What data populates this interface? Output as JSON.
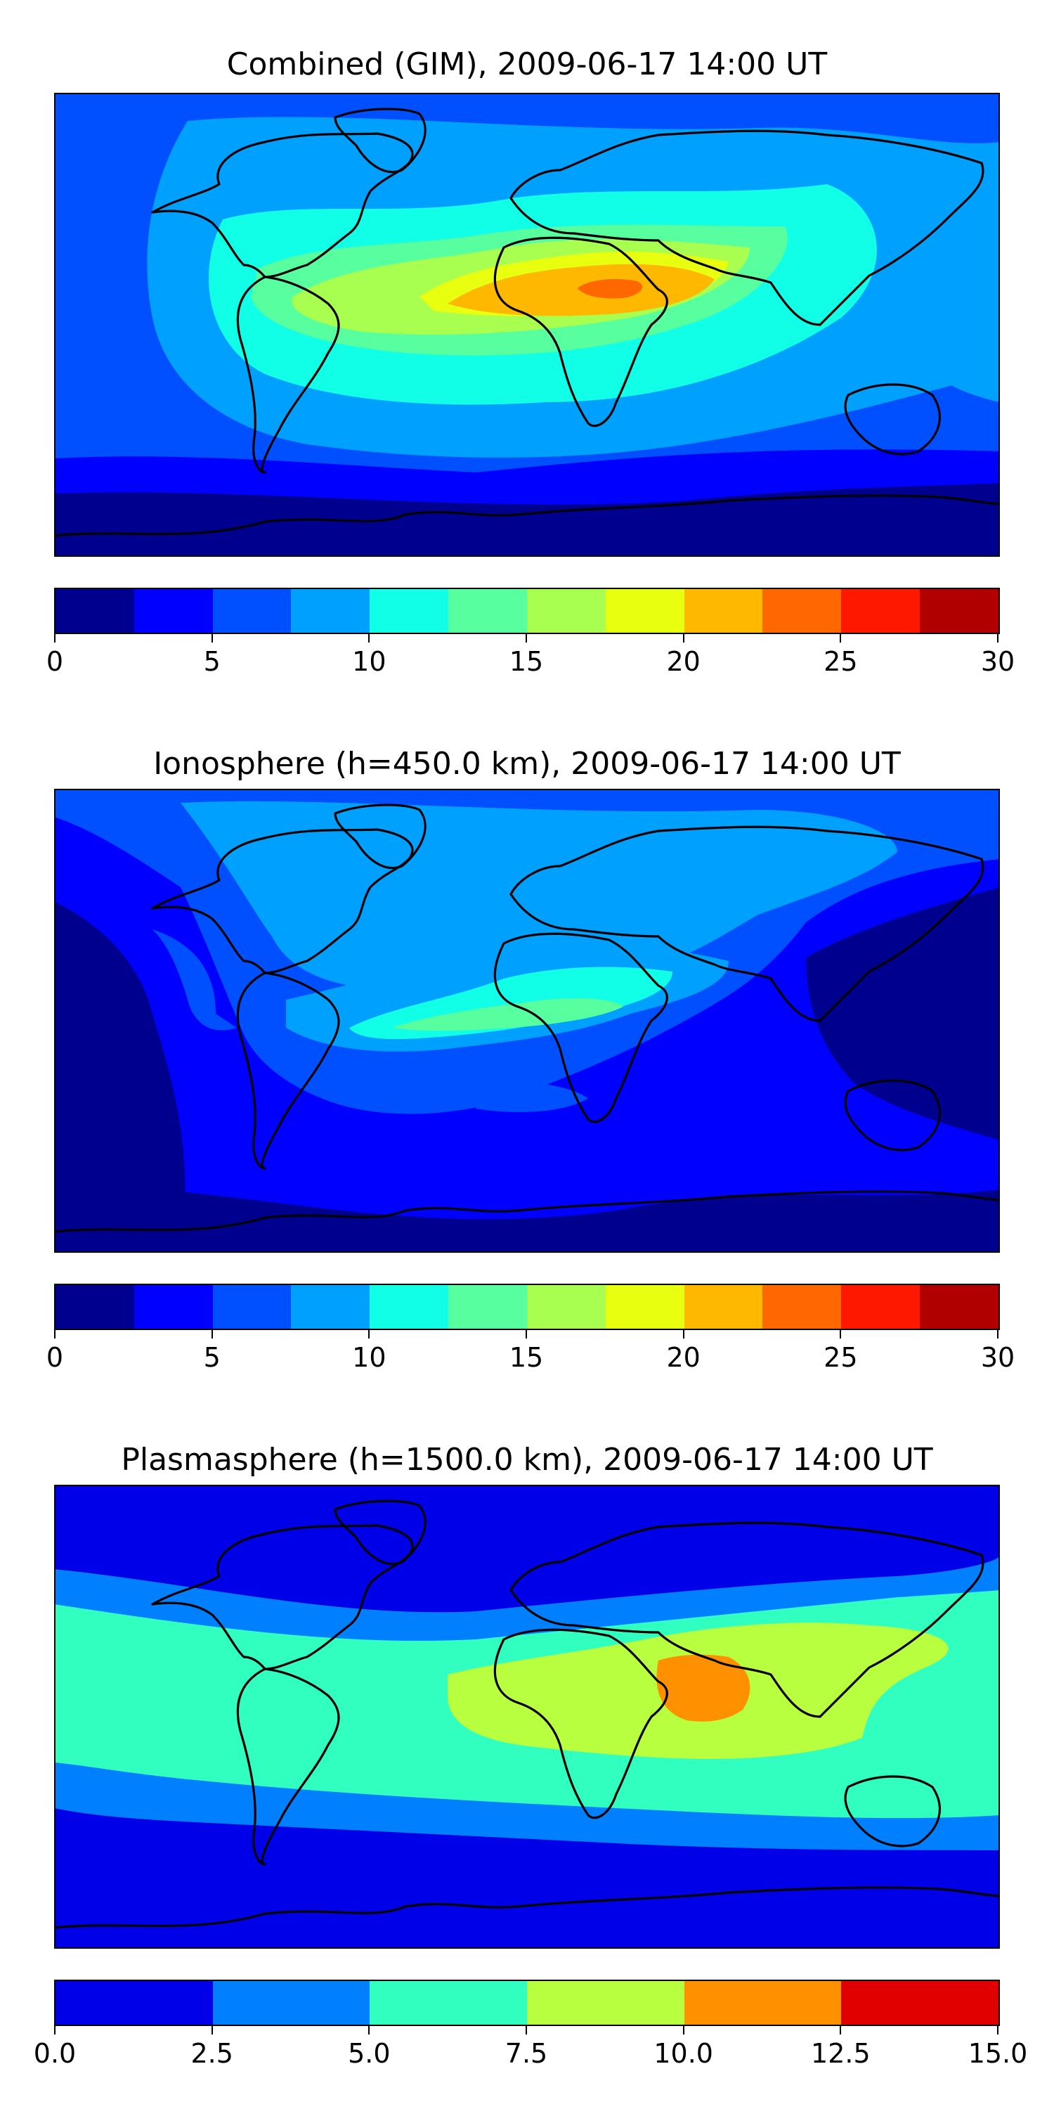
{
  "panels": [
    {
      "title": "Combined (GIM), 2009-06-17 14:00 UT",
      "colorbar": {
        "colors": [
          "#00008f",
          "#0000ff",
          "#0050ff",
          "#00a0ff",
          "#10ffe6",
          "#58ff9e",
          "#a8ff50",
          "#e8ff10",
          "#ffb800",
          "#ff6800",
          "#ff1800",
          "#b00000"
        ],
        "ticks": [
          "0",
          "5",
          "10",
          "15",
          "20",
          "25",
          "30"
        ],
        "range": [
          0,
          30
        ]
      }
    },
    {
      "title": "Ionosphere  (h=450.0 km), 2009-06-17 14:00 UT",
      "colorbar": {
        "colors": [
          "#00008f",
          "#0000ff",
          "#0050ff",
          "#00a0ff",
          "#10ffe6",
          "#58ff9e",
          "#a8ff50",
          "#e8ff10",
          "#ffb800",
          "#ff6800",
          "#ff1800",
          "#b00000"
        ],
        "ticks": [
          "0",
          "5",
          "10",
          "15",
          "20",
          "25",
          "30"
        ],
        "range": [
          0,
          30
        ]
      }
    },
    {
      "title": "Plasmasphere (h=1500.0 km), 2009-06-17 14:00 UT",
      "colorbar": {
        "colors": [
          "#0000e8",
          "#0080ff",
          "#30ffc0",
          "#b8ff40",
          "#ff9000",
          "#e00000"
        ],
        "ticks": [
          "0.0",
          "2.5",
          "5.0",
          "7.5",
          "10.0",
          "12.5",
          "15.0"
        ],
        "range": [
          0,
          15
        ]
      }
    }
  ]
}
